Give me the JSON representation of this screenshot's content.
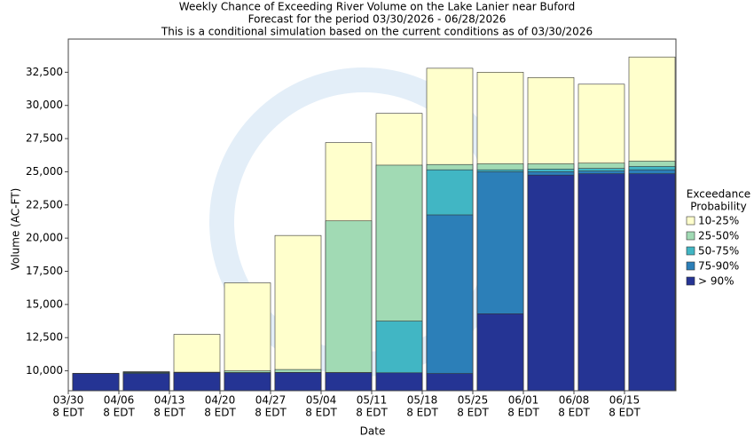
{
  "chart_data": {
    "type": "bar",
    "title": "Weekly Chance of Exceeding River Volume on the Lake Lanier near Buford",
    "subtitle": "Forecast for the period 03/30/2026 - 06/28/2026",
    "note": "This is a conditional simulation based on the current conditions as of 03/30/2026",
    "x_label": "Date",
    "y_label": "Volume (AC-FT)",
    "legend_title": [
      "Exceedance",
      "Probability"
    ],
    "categories": [
      [
        "03/30",
        "8 EDT"
      ],
      [
        "04/06",
        "8 EDT"
      ],
      [
        "04/13",
        "8 EDT"
      ],
      [
        "04/20",
        "8 EDT"
      ],
      [
        "04/27",
        "8 EDT"
      ],
      [
        "05/04",
        "8 EDT"
      ],
      [
        "05/11",
        "8 EDT"
      ],
      [
        "05/18",
        "8 EDT"
      ],
      [
        "05/25",
        "8 EDT"
      ],
      [
        "06/01",
        "8 EDT"
      ],
      [
        "06/08",
        "8 EDT"
      ],
      [
        "06/15",
        "8 EDT"
      ]
    ],
    "series": [
      {
        "name": "10-25%",
        "color": "#ffffcc",
        "values": [
          9800,
          9930,
          12750,
          16630,
          20200,
          27200,
          29400,
          32800,
          32500,
          32100,
          31600,
          33650
        ]
      },
      {
        "name": "25-50%",
        "color": "#a1dab4",
        "values": [
          9800,
          9930,
          9900,
          10000,
          10100,
          21300,
          25500,
          25550,
          25600,
          25600,
          25650,
          25800
        ]
      },
      {
        "name": "50-75%",
        "color": "#41b6c4",
        "values": [
          9800,
          9900,
          9880,
          9870,
          9880,
          9870,
          13750,
          25150,
          25150,
          25200,
          25250,
          25400
        ]
      },
      {
        "name": "75-90%",
        "color": "#2c7fb8",
        "values": [
          9800,
          9850,
          9870,
          9860,
          9870,
          9860,
          9850,
          21750,
          25000,
          25000,
          25050,
          25150
        ]
      },
      {
        "name": "> 90%",
        "color": "#253494",
        "values": [
          9800,
          9800,
          9870,
          9850,
          9870,
          9860,
          9850,
          9800,
          14300,
          24750,
          24850,
          24850
        ]
      }
    ],
    "ylim": [
      8500,
      35000
    ],
    "yticks": [
      {
        "value": 10000,
        "label": "10,000"
      },
      {
        "value": 12500,
        "label": "12,500"
      },
      {
        "value": 15000,
        "label": "15,000"
      },
      {
        "value": 17500,
        "label": "17,500"
      },
      {
        "value": 20000,
        "label": "20,000"
      },
      {
        "value": 22500,
        "label": "22,500"
      },
      {
        "value": 25000,
        "label": "25,000"
      },
      {
        "value": 27500,
        "label": "27,500"
      },
      {
        "value": 30000,
        "label": "30,000"
      },
      {
        "value": 32500,
        "label": "32,500"
      }
    ],
    "grid": false,
    "legend": "right"
  }
}
